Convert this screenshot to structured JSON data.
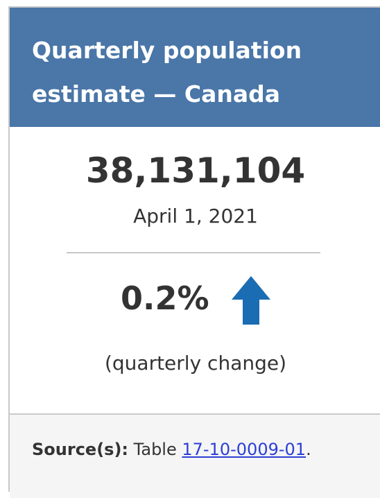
{
  "header": {
    "title": "Quarterly population estimate — Canada"
  },
  "figure": {
    "value": "38,131,104",
    "date": "April 1, 2021"
  },
  "change": {
    "value": "0.2%",
    "caption": "(quarterly change)"
  },
  "source": {
    "label": "Source(s):",
    "text": "Table",
    "link": "17-10-0009-01",
    "end": "."
  }
}
